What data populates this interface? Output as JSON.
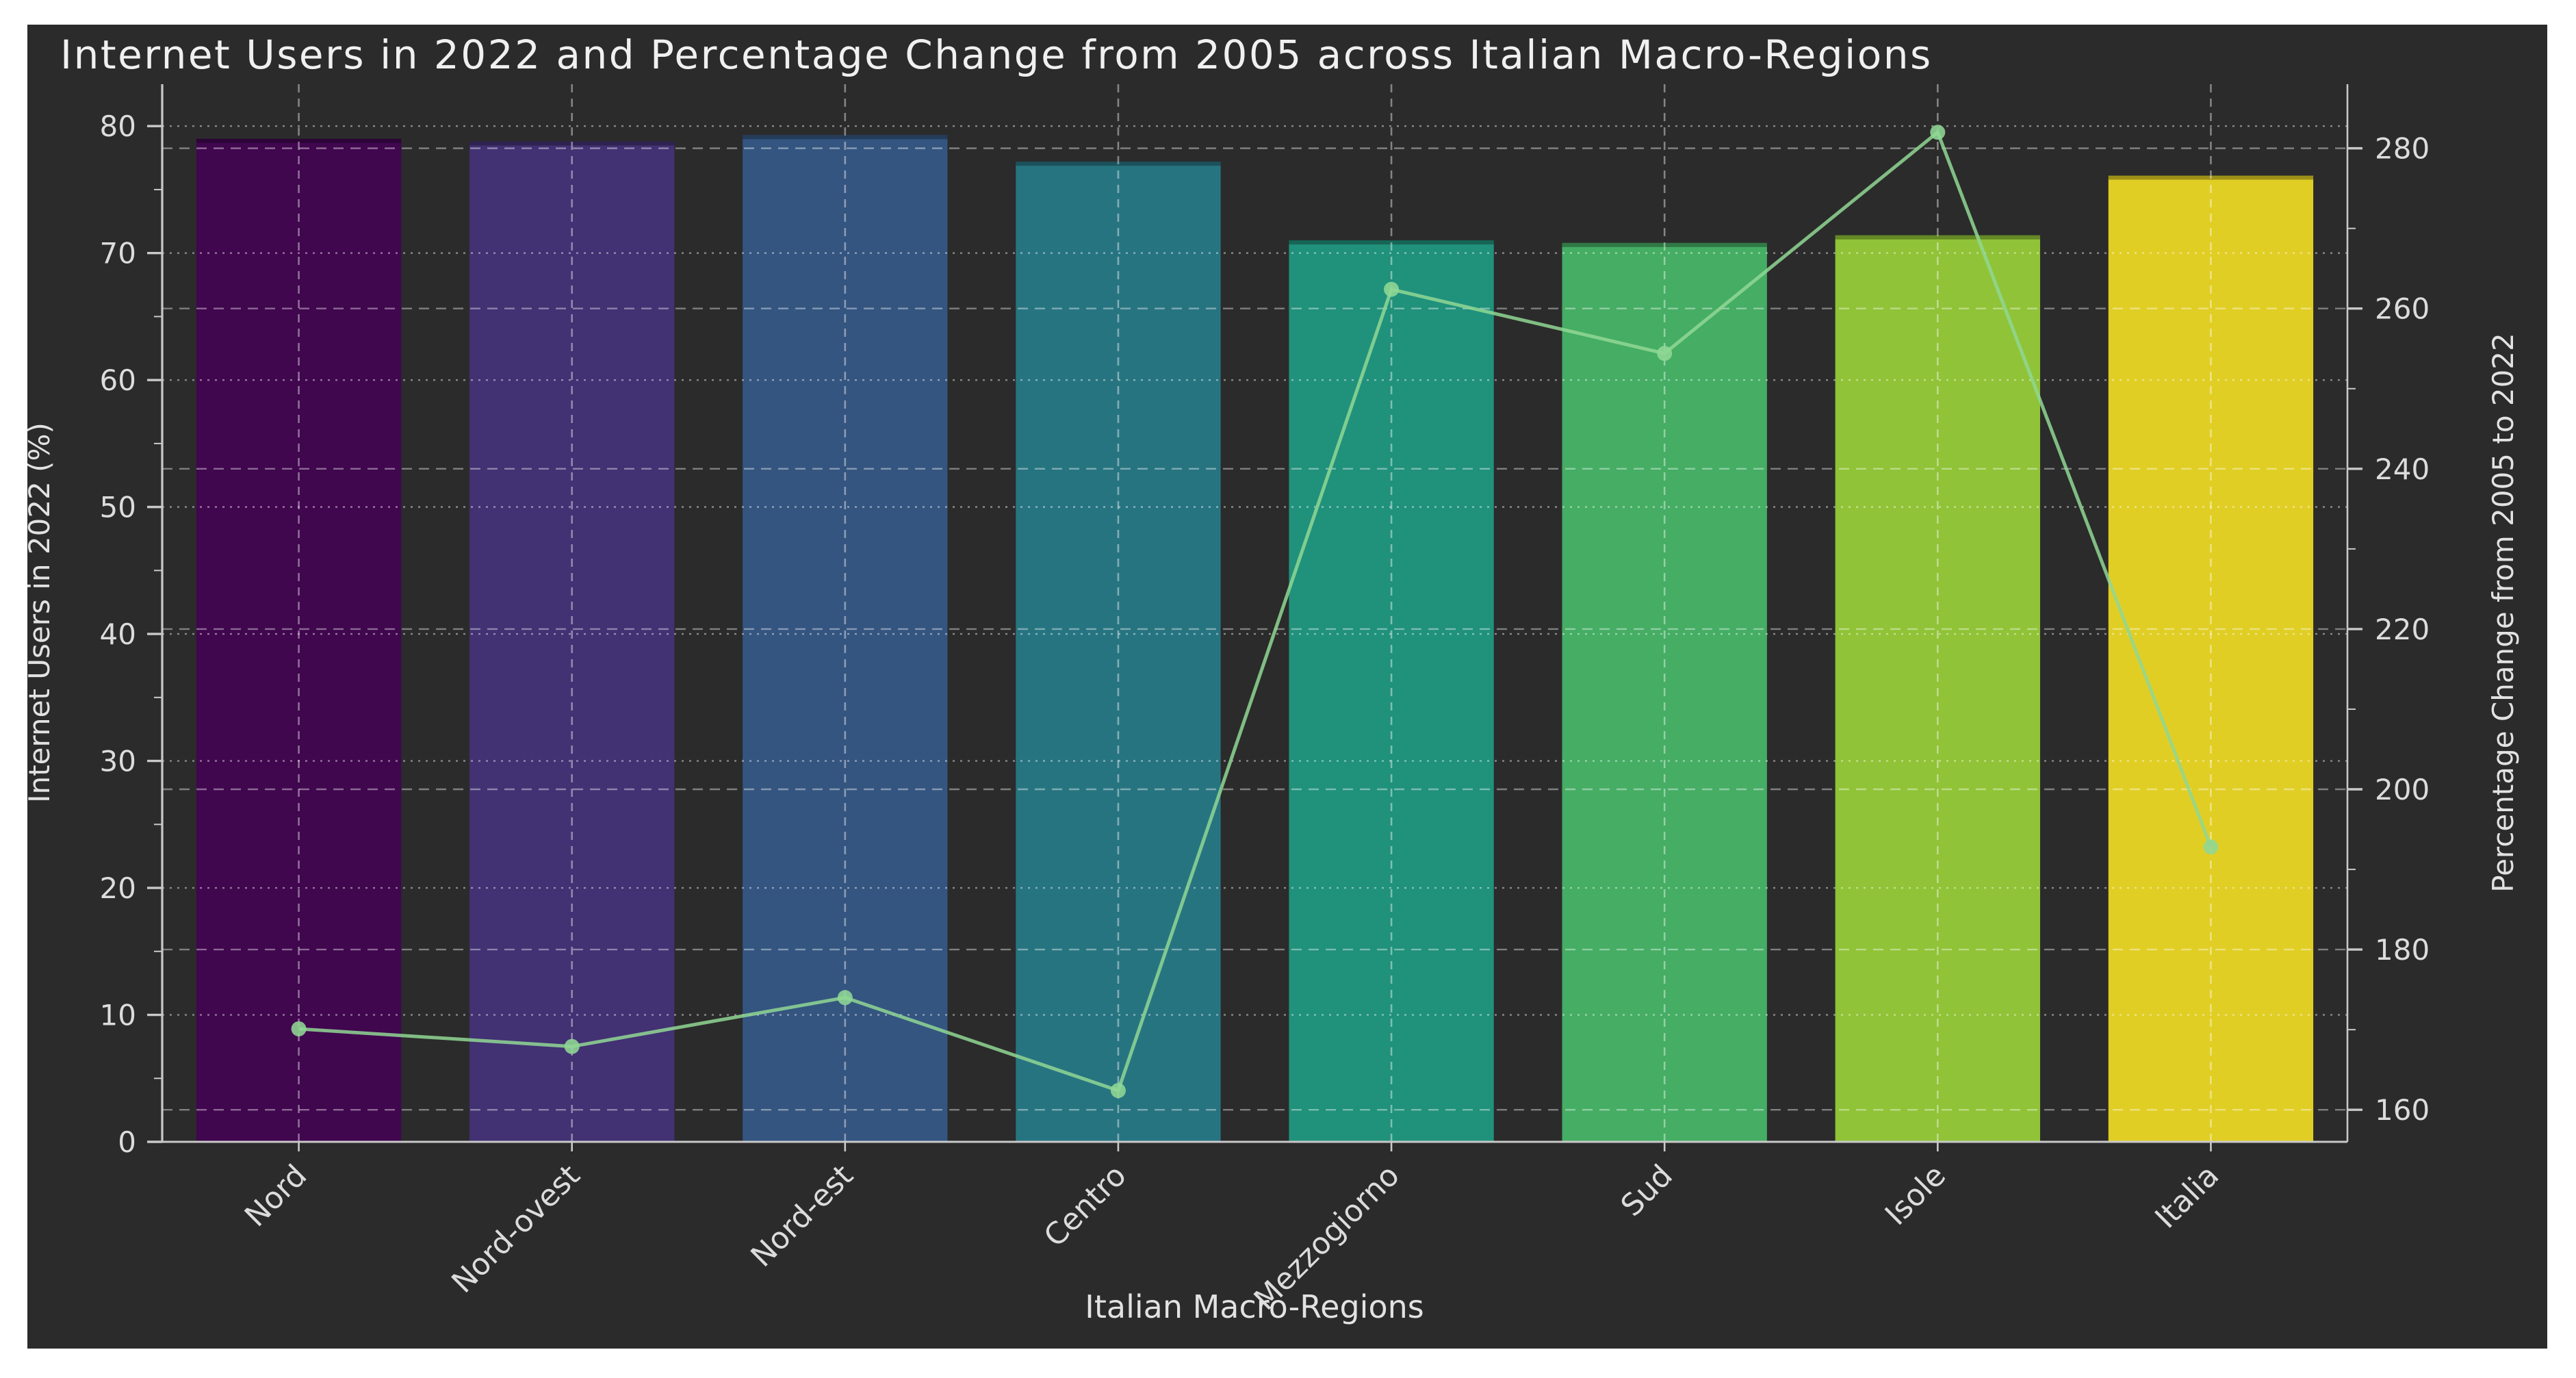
{
  "chart_data": {
    "type": "bar",
    "title": "Internet Users in 2022 and Percentage Change from 2005 across Italian Macro-Regions",
    "xlabel": "Italian Macro-Regions",
    "categories": [
      "Nord",
      "Nord-ovest",
      "Nord-est",
      "Centro",
      "Mezzogiorno",
      "Sud",
      "Isole",
      "Italia"
    ],
    "series": [
      {
        "name": "Internet Users in 2022 (%)",
        "type": "bar",
        "axis": "left",
        "values": [
          79.0,
          78.8,
          79.3,
          77.2,
          71.0,
          70.8,
          71.4,
          76.1
        ]
      },
      {
        "name": "Percentage Change from 2005 to 2022",
        "type": "line",
        "axis": "right",
        "values": [
          170.1,
          167.9,
          174.0,
          162.4,
          262.4,
          254.4,
          282.0,
          192.8
        ]
      }
    ],
    "left_axis": {
      "label": "Internet Users in 2022 (%)",
      "tick_labels": [
        "0",
        "10",
        "20",
        "30",
        "40",
        "50",
        "60",
        "70",
        "80"
      ],
      "range": [
        0,
        83.3
      ],
      "minor_tick_step": 5
    },
    "right_axis": {
      "label": "Percentage Change from 2005 to 2022",
      "tick_labels": [
        "160",
        "180",
        "200",
        "220",
        "240",
        "260",
        "280"
      ],
      "range": [
        156,
        288
      ],
      "minor_tick_step": 10
    },
    "style": {
      "figure_background": "#2b2b2b",
      "page_background": "#ffffff",
      "text_color": "#dcdcdc",
      "grid_color": "#ffffff",
      "spine_color": "#c9c9c9",
      "bar_colors": [
        "#440154",
        "#46327e",
        "#365c8d",
        "#277f8e",
        "#1fa187",
        "#4ac16d",
        "#a0da39",
        "#fde725"
      ],
      "bar_opacity": 0.87,
      "line_color": "#90d794",
      "grid_on": true,
      "legend": "none"
    }
  }
}
